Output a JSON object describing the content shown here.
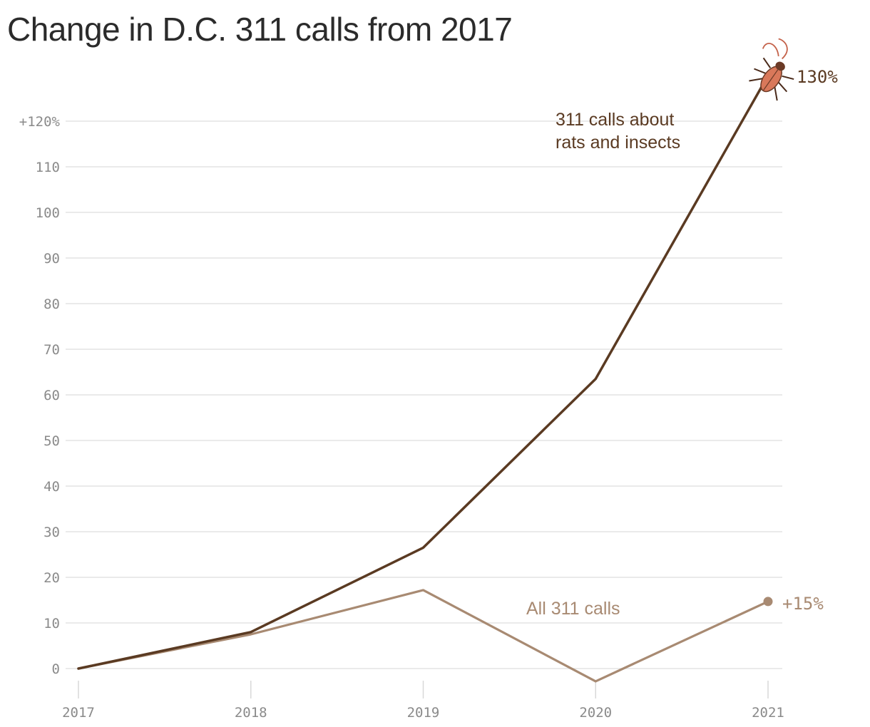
{
  "title": "Change in D.C. 311 calls from 2017",
  "chart_data": {
    "type": "line",
    "title": "Change in D.C. 311 calls from 2017",
    "x": [
      "2017",
      "2018",
      "2019",
      "2020",
      "2021"
    ],
    "series": [
      {
        "name": "311 calls about rats and insects",
        "values": [
          0,
          8,
          26.5,
          63.5,
          130
        ],
        "color": "#5a3a22",
        "end_label": "130%",
        "end_icon": "cockroach-icon"
      },
      {
        "name": "All 311 calls",
        "values": [
          0,
          7.5,
          17.2,
          -2.8,
          14.7
        ],
        "color": "#a88a72",
        "end_label": "+15%",
        "end_marker": "dot"
      }
    ],
    "y_ticks": [
      {
        "value": 0,
        "label": "0"
      },
      {
        "value": 10,
        "label": "10"
      },
      {
        "value": 20,
        "label": "20"
      },
      {
        "value": 30,
        "label": "30"
      },
      {
        "value": 40,
        "label": "40"
      },
      {
        "value": 50,
        "label": "50"
      },
      {
        "value": 60,
        "label": "60"
      },
      {
        "value": 70,
        "label": "70"
      },
      {
        "value": 80,
        "label": "80"
      },
      {
        "value": 90,
        "label": "90"
      },
      {
        "value": 100,
        "label": "100"
      },
      {
        "value": 110,
        "label": "110"
      },
      {
        "value": 120,
        "label": "+120%"
      }
    ],
    "ylim": [
      -5,
      135
    ],
    "grid": true,
    "legend": "inline labels",
    "annotations": {
      "rats_label_lines": [
        "311 calls about",
        "rats and insects"
      ],
      "all_label": "All 311 calls"
    }
  }
}
